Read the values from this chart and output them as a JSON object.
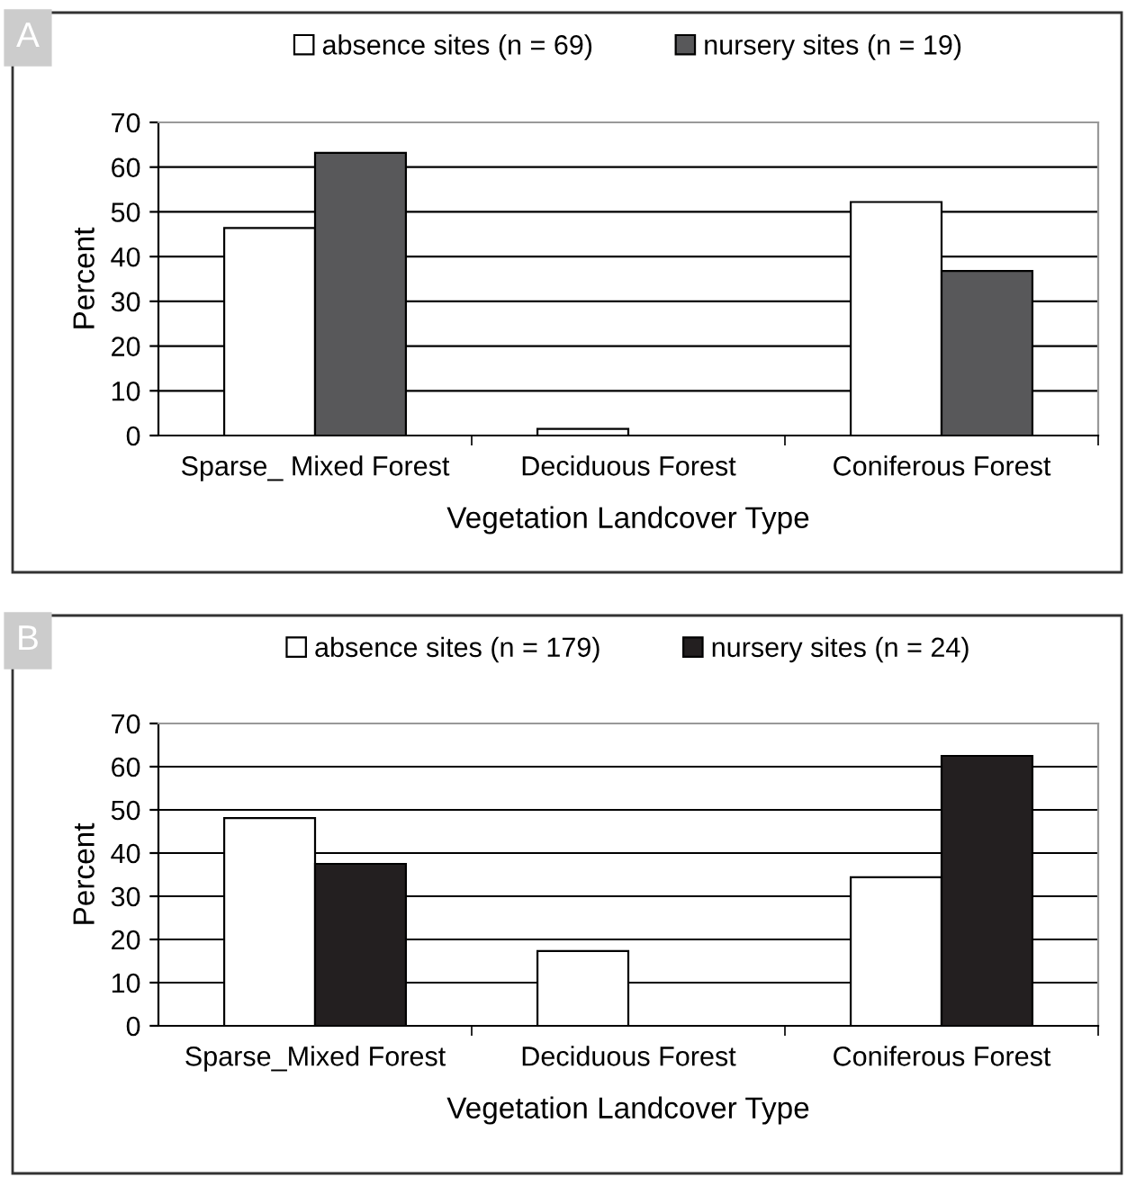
{
  "chart_data": [
    {
      "type": "bar",
      "title": "A",
      "xlabel": "Vegetation Landcover Type",
      "ylabel": "Percent",
      "categories": [
        "Sparse_ Mixed Forest",
        "Deciduous Forest",
        "Coniferous Forest"
      ],
      "series": [
        {
          "name": "absence sites (n = 69)",
          "color": "#ffffff",
          "values": [
            46.4,
            1.5,
            52.2
          ]
        },
        {
          "name": "nursery sites (n = 19)",
          "color": "#58585a",
          "values": [
            63.2,
            null,
            36.8
          ]
        }
      ],
      "ylim": [
        0,
        70
      ],
      "yticks": [
        0,
        10,
        20,
        30,
        40,
        50,
        60,
        70
      ],
      "grid": "y",
      "legend": "top"
    },
    {
      "type": "bar",
      "title": "B",
      "xlabel": "Vegetation Landcover Type",
      "ylabel": "Percent",
      "categories": [
        "Sparse_Mixed Forest",
        "Deciduous Forest",
        "Coniferous Forest"
      ],
      "series": [
        {
          "name": "absence sites (n = 179)",
          "color": "#ffffff",
          "values": [
            48.1,
            17.3,
            34.4
          ]
        },
        {
          "name": "nursery sites (n = 24)",
          "color": "#231f20",
          "values": [
            37.5,
            null,
            62.5
          ]
        }
      ],
      "ylim": [
        0,
        70
      ],
      "yticks": [
        0,
        10,
        20,
        30,
        40,
        50,
        60,
        70
      ],
      "grid": "y",
      "legend": "top"
    }
  ]
}
